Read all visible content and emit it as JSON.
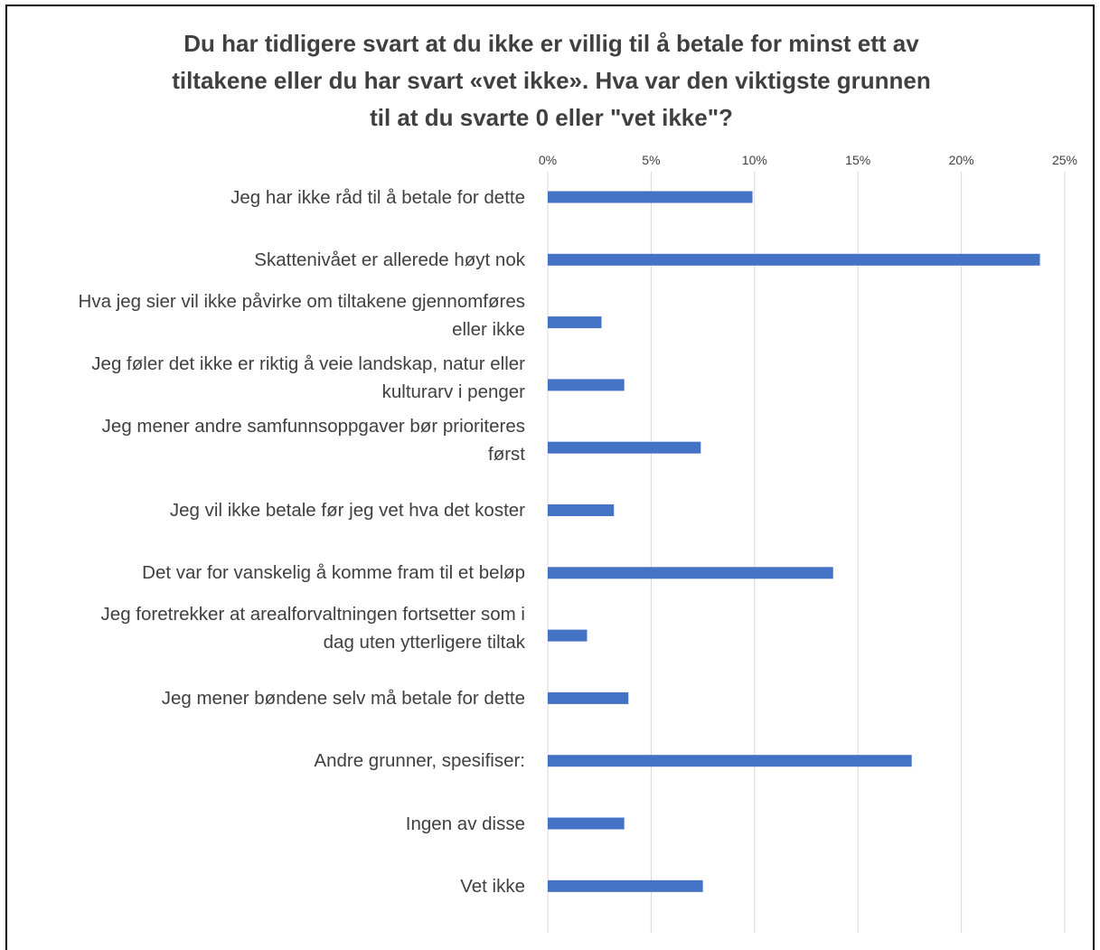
{
  "chart_data": {
    "type": "bar",
    "orientation": "horizontal",
    "title_lines": [
      "Du har tidligere svart at du ikke er villig til å betale for minst ett av",
      "tiltakene eller du har svart «vet ikke». Hva var den viktigste grunnen",
      "til at du svarte 0 eller \"vet ikke\"?"
    ],
    "categories": [
      [
        "Jeg har ikke råd til å betale for dette"
      ],
      [
        "Skattenivået er allerede høyt nok"
      ],
      [
        "Hva jeg sier vil ikke påvirke om tiltakene gjennomføres",
        "eller ikke"
      ],
      [
        "Jeg føler det ikke er riktig å veie landskap, natur eller",
        "kulturarv i penger"
      ],
      [
        "Jeg mener andre samfunnsoppgaver bør prioriteres",
        "først"
      ],
      [
        "Jeg vil ikke betale før jeg vet hva det koster"
      ],
      [
        "Det var for vanskelig å komme fram til et beløp"
      ],
      [
        "Jeg foretrekker at arealforvaltningen fortsetter som i",
        "dag uten ytterligere tiltak"
      ],
      [
        "Jeg mener bøndene selv må betale for dette"
      ],
      [
        "Andre grunner, spesifiser:"
      ],
      [
        "Ingen av disse"
      ],
      [
        "Vet ikke"
      ]
    ],
    "values": [
      9.9,
      23.8,
      2.6,
      3.7,
      7.4,
      3.2,
      13.8,
      1.9,
      3.9,
      17.6,
      3.7,
      7.5
    ],
    "unit": "%",
    "xlim": [
      0,
      25
    ],
    "ticks": [
      "0%",
      "5%",
      "10%",
      "15%",
      "20%",
      "25%"
    ],
    "tick_values": [
      0,
      5,
      10,
      15,
      20,
      25
    ],
    "axis_position": "top",
    "grid": true,
    "legend": "none",
    "bar_color": "#4472c4",
    "grid_color": "#d9d9d9",
    "text_color": "#404040"
  }
}
